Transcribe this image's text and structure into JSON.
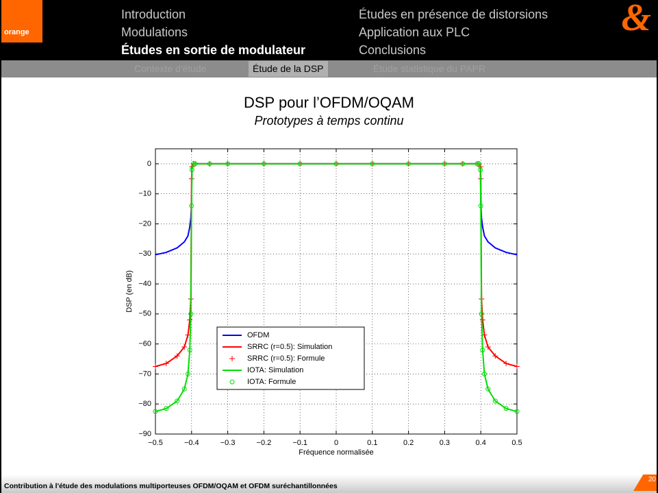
{
  "header": {
    "brand": "orange",
    "logo_symbol": "&",
    "nav_left": [
      "Introduction",
      "Modulations",
      "Études en sortie de modulateur"
    ],
    "nav_right": [
      "Études en présence de distorsions",
      "Application aux PLC",
      "Conclusions"
    ],
    "subnav": [
      "Contexte d'étude",
      "Étude de la DSP",
      "Étude statistique du PAPR"
    ]
  },
  "slide": {
    "title": "DSP pour l’OFDM/OQAM",
    "subtitle": "Prototypes à temps continu"
  },
  "footer": {
    "text": "Contribution à l'étude des modulations multiporteuses OFDM/OQAM et OFDM suréchantillonnées",
    "page": "20"
  },
  "chart_data": {
    "type": "line",
    "xlabel": "Fréquence normalisée",
    "ylabel": "DSP (en dB)",
    "x": [
      -0.5,
      -0.47,
      -0.44,
      -0.42,
      -0.41,
      -0.405,
      -0.402,
      -0.4,
      -0.399,
      -0.395,
      -0.39,
      -0.35,
      -0.3,
      -0.2,
      -0.1,
      0,
      0.1,
      0.2,
      0.3,
      0.35,
      0.39,
      0.395,
      0.399,
      0.4,
      0.402,
      0.405,
      0.41,
      0.42,
      0.44,
      0.47,
      0.5
    ],
    "series": [
      {
        "name": "OFDM",
        "color": "#0000ff",
        "line": true,
        "marker": null,
        "values": [
          -30.3,
          -29.5,
          -28,
          -26,
          -24,
          -21,
          -18,
          -13,
          -1,
          0,
          0,
          0,
          0,
          0,
          0,
          0,
          0,
          0,
          0,
          0,
          0,
          0,
          -1,
          -13,
          -18,
          -21,
          -24,
          -26,
          -28,
          -29.5,
          -30.3
        ]
      },
      {
        "name": "SRRC (r=0.5): Simulation",
        "color": "#ff0000",
        "line": true,
        "marker": null,
        "values": [
          -67.5,
          -66.5,
          -64,
          -61,
          -57,
          -52,
          -45,
          -5,
          -1,
          0,
          0,
          0,
          0,
          0,
          0,
          0,
          0,
          0,
          0,
          0,
          0,
          0,
          -1,
          -5,
          -45,
          -52,
          -57,
          -61,
          -64,
          -66.5,
          -67.5
        ]
      },
      {
        "name": "SRRC (r=0.5): Formule",
        "color": "#ff0000",
        "line": false,
        "marker": "plus",
        "values": [
          -67.5,
          -66.5,
          -64,
          -61,
          -57,
          -52,
          -45,
          -5,
          -1,
          0,
          0,
          0,
          0,
          0,
          0,
          0,
          0,
          0,
          0,
          0,
          0,
          0,
          -1,
          -5,
          -45,
          -52,
          -57,
          -61,
          -64,
          -66.5,
          -67.5
        ]
      },
      {
        "name": "IOTA: Simulation",
        "color": "#00dd00",
        "line": true,
        "marker": null,
        "values": [
          -82.5,
          -81.5,
          -79,
          -75,
          -70,
          -62,
          -50,
          -14,
          -2,
          0,
          0,
          0,
          0,
          0,
          0,
          0,
          0,
          0,
          0,
          0,
          0,
          0,
          -2,
          -14,
          -50,
          -62,
          -70,
          -75,
          -79,
          -81.5,
          -82.5
        ]
      },
      {
        "name": "IOTA: Formule",
        "color": "#00dd00",
        "line": false,
        "marker": "circle",
        "values": [
          -82.5,
          -81.5,
          -79,
          -75,
          -70,
          -62,
          -50,
          -14,
          -2,
          0,
          0,
          0,
          0,
          0,
          0,
          0,
          0,
          0,
          0,
          0,
          0,
          0,
          -2,
          -14,
          -50,
          -62,
          -70,
          -75,
          -79,
          -81.5,
          -82.5
        ]
      }
    ],
    "xlim": [
      -0.5,
      0.5
    ],
    "xticks": [
      {
        "value": -0.5,
        "label": "−0.5"
      },
      {
        "value": -0.4,
        "label": "−0.4"
      },
      {
        "value": -0.3,
        "label": "−0.3"
      },
      {
        "value": -0.2,
        "label": "−0.2"
      },
      {
        "value": -0.1,
        "label": "−0.1"
      },
      0,
      0.1,
      0.2,
      0.3,
      0.4,
      0.5
    ],
    "ylim": [
      -90,
      5
    ],
    "yticks": [
      {
        "value": -90,
        "label": "−90"
      },
      {
        "value": -80,
        "label": "−80"
      },
      {
        "value": -70,
        "label": "−70"
      },
      {
        "value": -60,
        "label": "−60"
      },
      {
        "value": -50,
        "label": "−50"
      },
      {
        "value": -40,
        "label": "−40"
      },
      {
        "value": -30,
        "label": "−30"
      },
      {
        "value": -20,
        "label": "−20"
      },
      {
        "value": -10,
        "label": "−10"
      },
      0
    ],
    "grid": true,
    "legend": "lower left"
  }
}
